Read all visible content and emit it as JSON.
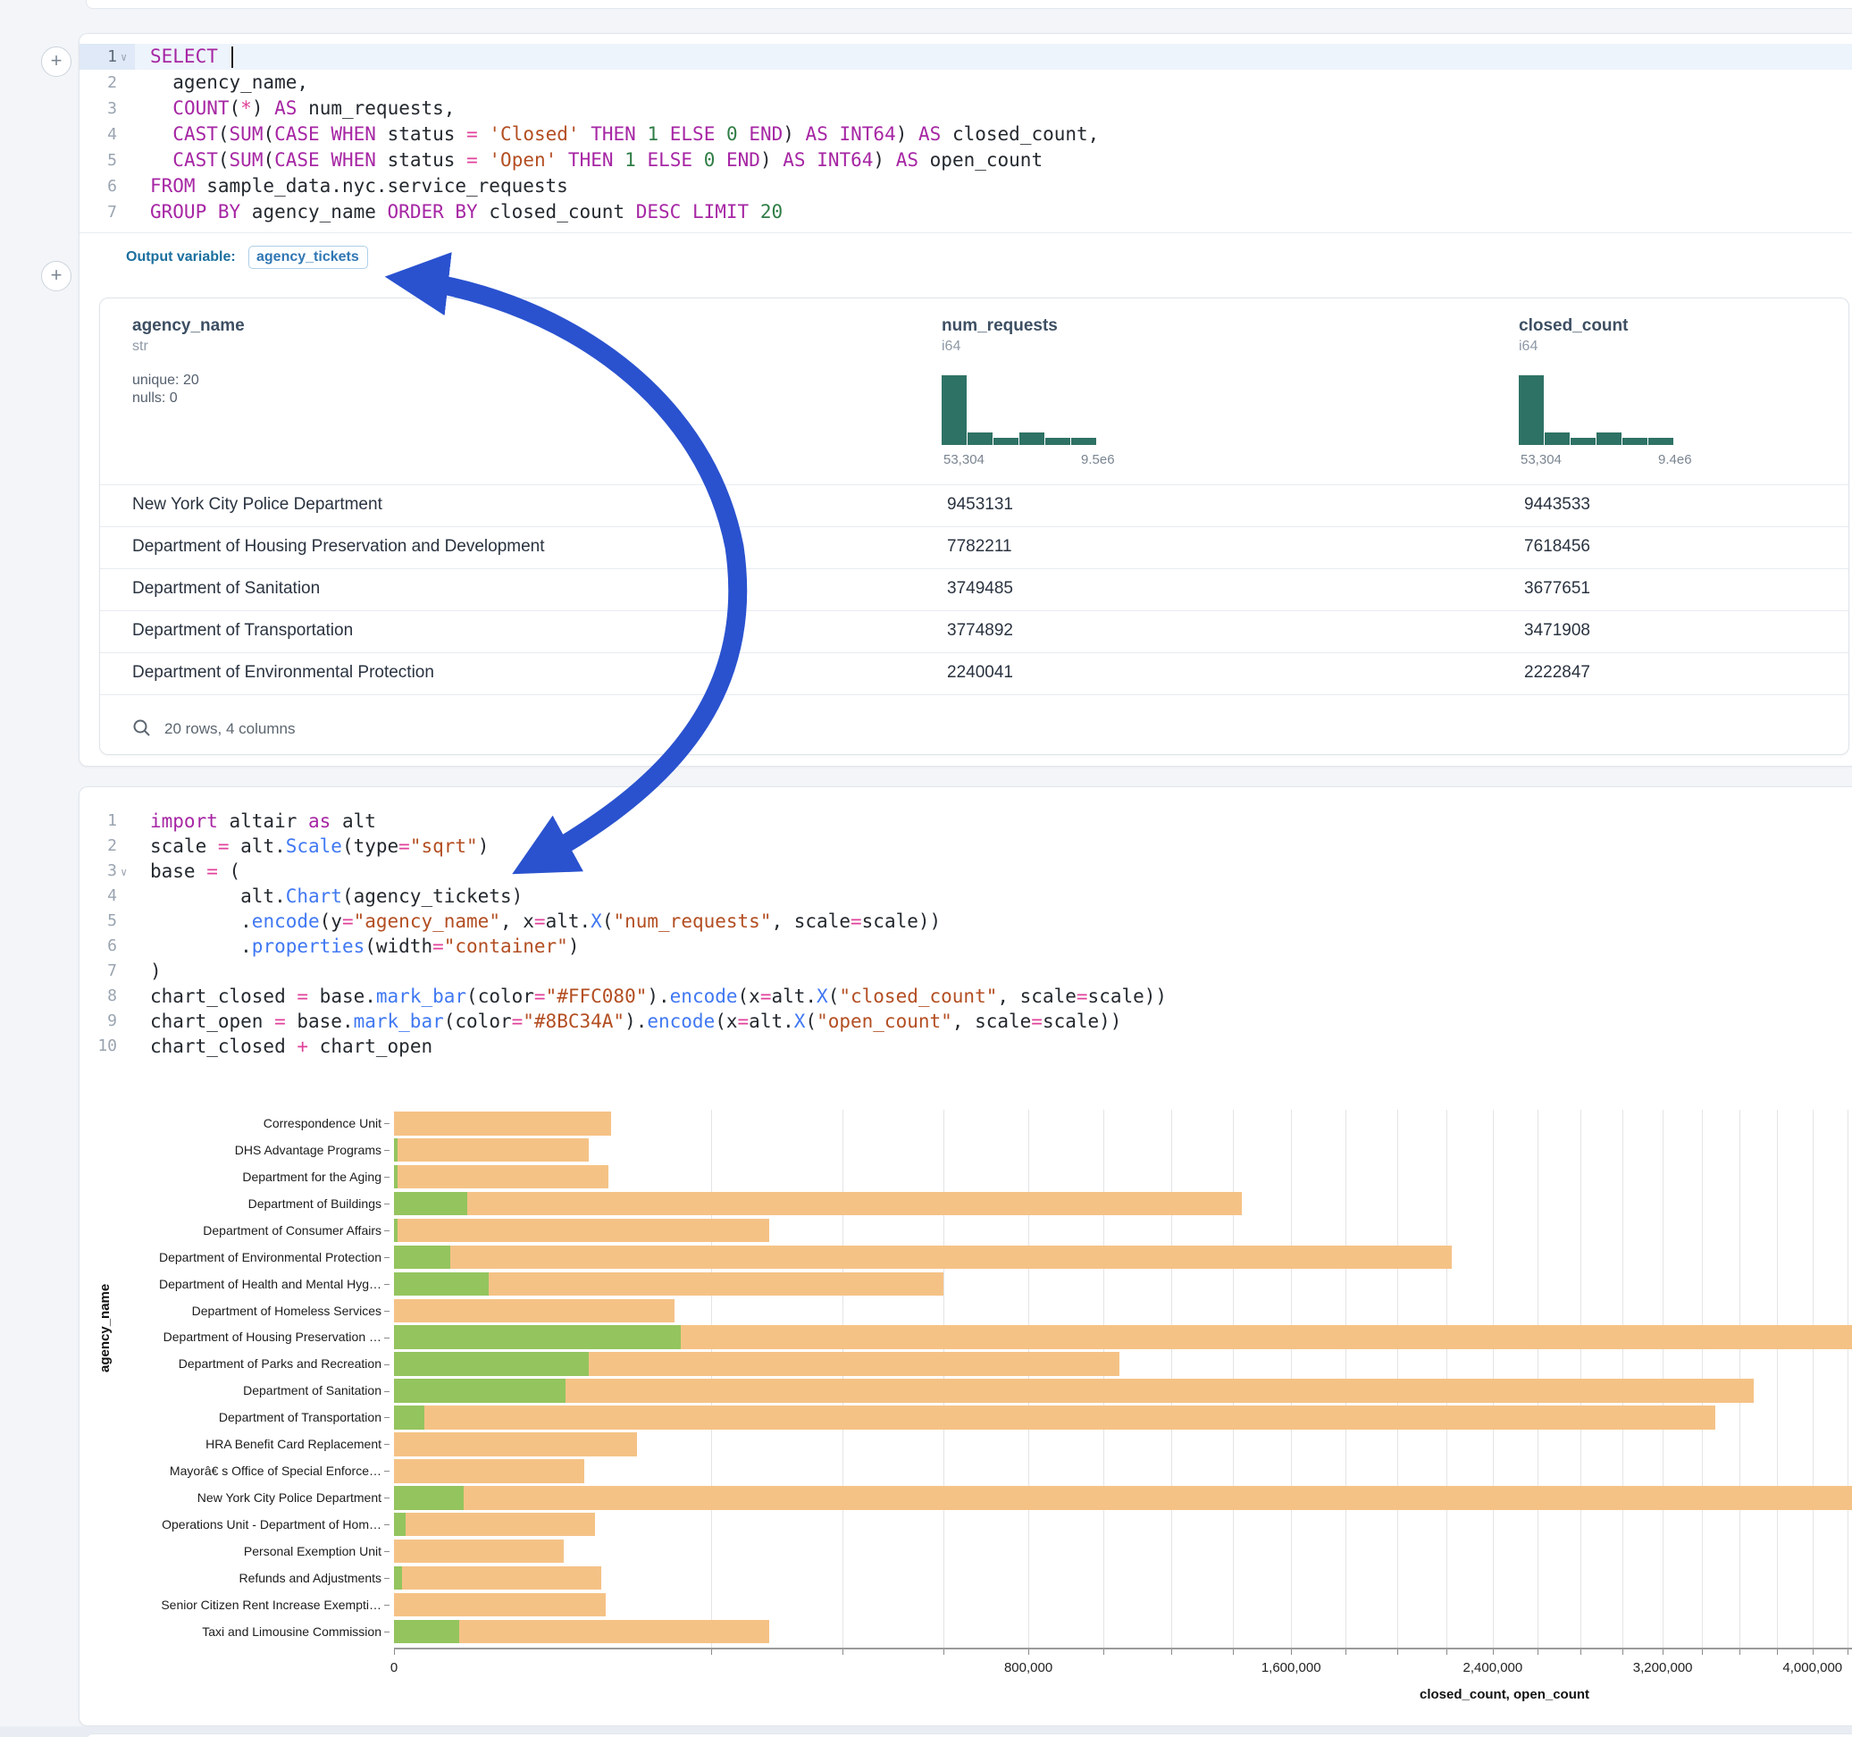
{
  "accent": {
    "arrow_blue": "#2a52cf",
    "hist_green": "#2e7265",
    "bar_orange": "#f5c286",
    "bar_green": "#94c45e"
  },
  "plus_buttons": {
    "label": "+"
  },
  "sql_cell": {
    "lines": [
      {
        "num": "1",
        "caret": "v",
        "active": true,
        "cursor_after": "SELECT ",
        "tokens": [
          [
            "SELECT",
            "kw"
          ]
        ]
      },
      {
        "num": "2",
        "tokens": [
          [
            "  agency_name,",
            "id"
          ]
        ]
      },
      {
        "num": "3",
        "tokens": [
          [
            "  ",
            "id"
          ],
          [
            "COUNT",
            "kw"
          ],
          [
            "(",
            "id"
          ],
          [
            "*",
            "op"
          ],
          [
            ") ",
            "id"
          ],
          [
            "AS",
            "kw"
          ],
          [
            " num_requests,",
            "id"
          ]
        ]
      },
      {
        "num": "4",
        "tokens": [
          [
            "  ",
            "id"
          ],
          [
            "CAST",
            "kw"
          ],
          [
            "(",
            "id"
          ],
          [
            "SUM",
            "kw"
          ],
          [
            "(",
            "id"
          ],
          [
            "CASE",
            "kw"
          ],
          [
            " ",
            "id"
          ],
          [
            "WHEN",
            "kw"
          ],
          [
            " status ",
            "id"
          ],
          [
            "=",
            "op"
          ],
          [
            " ",
            "id"
          ],
          [
            "'Closed'",
            "str"
          ],
          [
            " ",
            "id"
          ],
          [
            "THEN",
            "kw"
          ],
          [
            " ",
            "id"
          ],
          [
            "1",
            "num"
          ],
          [
            " ",
            "id"
          ],
          [
            "ELSE",
            "kw"
          ],
          [
            " ",
            "id"
          ],
          [
            "0",
            "num"
          ],
          [
            " ",
            "id"
          ],
          [
            "END",
            "kw"
          ],
          [
            ") ",
            "id"
          ],
          [
            "AS",
            "kw"
          ],
          [
            " ",
            "id"
          ],
          [
            "INT64",
            "kw"
          ],
          [
            ") ",
            "id"
          ],
          [
            "AS",
            "kw"
          ],
          [
            " closed_count,",
            "id"
          ]
        ]
      },
      {
        "num": "5",
        "tokens": [
          [
            "  ",
            "id"
          ],
          [
            "CAST",
            "kw"
          ],
          [
            "(",
            "id"
          ],
          [
            "SUM",
            "kw"
          ],
          [
            "(",
            "id"
          ],
          [
            "CASE",
            "kw"
          ],
          [
            " ",
            "id"
          ],
          [
            "WHEN",
            "kw"
          ],
          [
            " status ",
            "id"
          ],
          [
            "=",
            "op"
          ],
          [
            " ",
            "id"
          ],
          [
            "'Open'",
            "str"
          ],
          [
            " ",
            "id"
          ],
          [
            "THEN",
            "kw"
          ],
          [
            " ",
            "id"
          ],
          [
            "1",
            "num"
          ],
          [
            " ",
            "id"
          ],
          [
            "ELSE",
            "kw"
          ],
          [
            " ",
            "id"
          ],
          [
            "0",
            "num"
          ],
          [
            " ",
            "id"
          ],
          [
            "END",
            "kw"
          ],
          [
            ") ",
            "id"
          ],
          [
            "AS",
            "kw"
          ],
          [
            " ",
            "id"
          ],
          [
            "INT64",
            "kw"
          ],
          [
            ") ",
            "id"
          ],
          [
            "AS",
            "kw"
          ],
          [
            " open_count",
            "id"
          ]
        ]
      },
      {
        "num": "6",
        "tokens": [
          [
            "FROM",
            "kw"
          ],
          [
            " sample_data.nyc.service_requests",
            "id"
          ]
        ]
      },
      {
        "num": "7",
        "tokens": [
          [
            "GROUP BY",
            "kw"
          ],
          [
            " agency_name ",
            "id"
          ],
          [
            "ORDER BY",
            "kw"
          ],
          [
            " closed_count ",
            "id"
          ],
          [
            "DESC",
            "kw"
          ],
          [
            " ",
            "id"
          ],
          [
            "LIMIT",
            "kw"
          ],
          [
            " ",
            "id"
          ],
          [
            "20",
            "num"
          ]
        ]
      }
    ]
  },
  "output_variable": {
    "label": "Output variable:",
    "value": "agency_tickets"
  },
  "table": {
    "columns": [
      {
        "name": "agency_name",
        "type": "str",
        "stats": [
          "unique: 20",
          "nulls: 0"
        ]
      },
      {
        "name": "num_requests",
        "type": "i64",
        "hist_bins": [
          78,
          14,
          8,
          14,
          8,
          8
        ],
        "min_label": "53,304",
        "max_label": "9.5e6"
      },
      {
        "name": "closed_count",
        "type": "i64",
        "hist_bins": [
          78,
          14,
          8,
          14,
          8,
          8
        ],
        "min_label": "53,304",
        "max_label": "9.4e6"
      }
    ],
    "rows": [
      {
        "agency_name": "New York City Police Department",
        "num_requests": "9453131",
        "closed_count": "9443533"
      },
      {
        "agency_name": "Department of Housing Preservation and Development",
        "num_requests": "7782211",
        "closed_count": "7618456"
      },
      {
        "agency_name": "Department of Sanitation",
        "num_requests": "3749485",
        "closed_count": "3677651"
      },
      {
        "agency_name": "Department of Transportation",
        "num_requests": "3774892",
        "closed_count": "3471908"
      },
      {
        "agency_name": "Department of Environmental Protection",
        "num_requests": "2240041",
        "closed_count": "2222847"
      }
    ],
    "footer": "20 rows, 4 columns"
  },
  "python_cell": {
    "lines": [
      {
        "num": "1",
        "tokens": [
          [
            "import",
            "kw"
          ],
          [
            " altair ",
            "id"
          ],
          [
            "as",
            "kw"
          ],
          [
            " alt",
            "id"
          ]
        ]
      },
      {
        "num": "2",
        "tokens": [
          [
            "scale ",
            "id"
          ],
          [
            "=",
            "op"
          ],
          [
            " alt.",
            "id"
          ],
          [
            "Scale",
            "fn"
          ],
          [
            "(type",
            "id"
          ],
          [
            "=",
            "op"
          ],
          [
            "\"sqrt\"",
            "str"
          ],
          [
            ")",
            "id"
          ]
        ]
      },
      {
        "num": "3",
        "caret": "v",
        "tokens": [
          [
            "base ",
            "id"
          ],
          [
            "=",
            "op"
          ],
          [
            " (",
            "id"
          ]
        ]
      },
      {
        "num": "4",
        "tokens": [
          [
            "        alt.",
            "id"
          ],
          [
            "Chart",
            "fn"
          ],
          [
            "(agency_tickets)",
            "id"
          ]
        ]
      },
      {
        "num": "5",
        "tokens": [
          [
            "        .",
            "id"
          ],
          [
            "encode",
            "fn"
          ],
          [
            "(y",
            "id"
          ],
          [
            "=",
            "op"
          ],
          [
            "\"agency_name\"",
            "str"
          ],
          [
            ", x",
            "id"
          ],
          [
            "=",
            "op"
          ],
          [
            "alt.",
            "id"
          ],
          [
            "X",
            "fn"
          ],
          [
            "(",
            "id"
          ],
          [
            "\"num_requests\"",
            "str"
          ],
          [
            ", scale",
            "id"
          ],
          [
            "=",
            "op"
          ],
          [
            "scale))",
            "id"
          ]
        ]
      },
      {
        "num": "6",
        "tokens": [
          [
            "        .",
            "id"
          ],
          [
            "properties",
            "fn"
          ],
          [
            "(width",
            "id"
          ],
          [
            "=",
            "op"
          ],
          [
            "\"container\"",
            "str"
          ],
          [
            ")",
            "id"
          ]
        ]
      },
      {
        "num": "7",
        "tokens": [
          [
            ")",
            "id"
          ]
        ]
      },
      {
        "num": "8",
        "tokens": [
          [
            "chart_closed ",
            "id"
          ],
          [
            "=",
            "op"
          ],
          [
            " base.",
            "id"
          ],
          [
            "mark_bar",
            "fn"
          ],
          [
            "(color",
            "id"
          ],
          [
            "=",
            "op"
          ],
          [
            "\"#FFC080\"",
            "str"
          ],
          [
            ").",
            "id"
          ],
          [
            "encode",
            "fn"
          ],
          [
            "(x",
            "id"
          ],
          [
            "=",
            "op"
          ],
          [
            "alt.",
            "id"
          ],
          [
            "X",
            "fn"
          ],
          [
            "(",
            "id"
          ],
          [
            "\"closed_count\"",
            "str"
          ],
          [
            ", scale",
            "id"
          ],
          [
            "=",
            "op"
          ],
          [
            "scale))",
            "id"
          ]
        ]
      },
      {
        "num": "9",
        "tokens": [
          [
            "chart_open ",
            "id"
          ],
          [
            "=",
            "op"
          ],
          [
            " base.",
            "id"
          ],
          [
            "mark_bar",
            "fn"
          ],
          [
            "(color",
            "id"
          ],
          [
            "=",
            "op"
          ],
          [
            "\"#8BC34A\"",
            "str"
          ],
          [
            ").",
            "id"
          ],
          [
            "encode",
            "fn"
          ],
          [
            "(x",
            "id"
          ],
          [
            "=",
            "op"
          ],
          [
            "alt.",
            "id"
          ],
          [
            "X",
            "fn"
          ],
          [
            "(",
            "id"
          ],
          [
            "\"open_count\"",
            "str"
          ],
          [
            ", scale",
            "id"
          ],
          [
            "=",
            "op"
          ],
          [
            "scale))",
            "id"
          ]
        ]
      },
      {
        "num": "10",
        "tokens": [
          [
            "chart_closed ",
            "id"
          ],
          [
            "+",
            "op"
          ],
          [
            " chart_open",
            "id"
          ]
        ]
      }
    ]
  },
  "chart_data": {
    "type": "bar",
    "orientation": "horizontal",
    "title": "",
    "xlabel": "closed_count, open_count",
    "ylabel": "agency_name",
    "x_scale": "sqrt",
    "xlim": [
      0,
      4400000
    ],
    "x_tick_labels": [
      "0",
      "800,000",
      "1,600,000",
      "2,400,000",
      "3,200,000",
      "4,000,000"
    ],
    "x_tick_values": [
      0,
      800000,
      1600000,
      2400000,
      3200000,
      4000000
    ],
    "gridline_step": 200000,
    "gridline_max": 4200000,
    "legend": null,
    "series": [
      {
        "name": "closed_count",
        "color": "#f5c286"
      },
      {
        "name": "open_count",
        "color": "#94c45e"
      }
    ],
    "categories": [
      "Correspondence Unit",
      "DHS Advantage Programs",
      "Department for the Aging",
      "Department of Buildings",
      "Department of Consumer Affairs",
      "Department of Environmental Protection",
      "Department of Health and Mental Hyg…",
      "Department of Homeless Services",
      "Department of Housing Preservation …",
      "Department of Parks and Recreation",
      "Department of Sanitation",
      "Department of Transportation",
      "HRA Benefit Card Replacement",
      "Mayorâ€ s Office of Special Enforce…",
      "New York City Police Department",
      "Operations Unit - Department of Hom…",
      "Personal Exemption Unit",
      "Refunds and Adjustments",
      "Senior Citizen Rent Increase Exempti…",
      "Taxi and Limousine Commission"
    ],
    "closed_values": [
      93700,
      75400,
      91400,
      1429000,
      280000,
      2222847,
      600000,
      156400,
      7618456,
      1046000,
      3677651,
      3471908,
      117400,
      72000,
      9443533,
      80300,
      57300,
      85400,
      89100,
      280000
    ],
    "open_values": [
      0,
      30,
      30,
      10700,
      30,
      6350,
      17800,
      0,
      163755,
      75400,
      58500,
      1830,
      0,
      0,
      9598,
      250,
      0,
      130,
      0,
      8460
    ]
  }
}
